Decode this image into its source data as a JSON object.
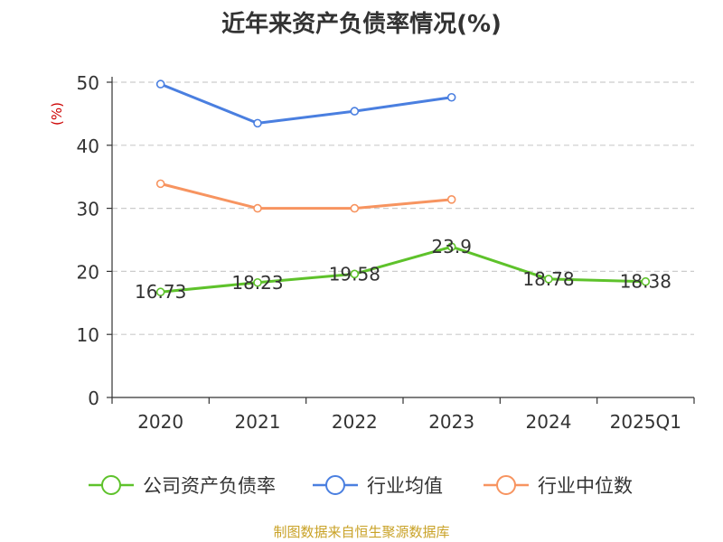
{
  "chart_data": {
    "type": "line",
    "title": "近年来资产负债率情况(%)",
    "ylabel": "(%)",
    "categories": [
      "2020",
      "2021",
      "2022",
      "2023",
      "2024",
      "2025Q1"
    ],
    "ylim": [
      0,
      50
    ],
    "yticks": [
      0,
      10,
      20,
      30,
      40,
      50
    ],
    "grid": true,
    "legend_position": "bottom",
    "series": [
      {
        "name": "公司资产负债率",
        "color": "#5ec22b",
        "values": [
          16.73,
          18.23,
          19.58,
          23.9,
          18.78,
          18.38
        ],
        "labels": [
          "16.73",
          "18.23",
          "19.58",
          "23.9",
          "18.78",
          "18.38"
        ]
      },
      {
        "name": "行业均值",
        "color": "#4a7fe0",
        "values": [
          49.7,
          43.5,
          45.4,
          47.6,
          null,
          null
        ]
      },
      {
        "name": "行业中位数",
        "color": "#f79460",
        "values": [
          33.9,
          30.0,
          30.0,
          31.4,
          null,
          null
        ]
      }
    ],
    "source": "制图数据来自恒生聚源数据库"
  }
}
